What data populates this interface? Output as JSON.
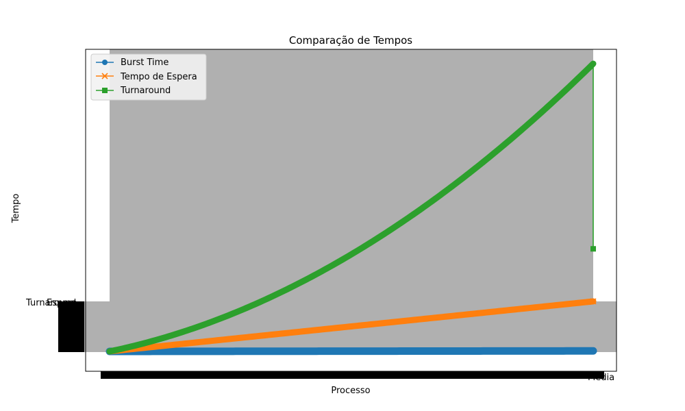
{
  "chart_data": {
    "type": "line",
    "title": "Comparação de Tempos",
    "xlabel": "Processo",
    "ylabel": "Tempo",
    "grid": false,
    "legend_position": "upper-left",
    "series": [
      {
        "name": "Burst Time",
        "color": "#1f77b4",
        "marker": "circle",
        "y_start": 0,
        "y_end": 2
      },
      {
        "name": "Tempo de Espera",
        "color": "#ff7f0e",
        "marker": "x",
        "y_start": 0,
        "y_end": 200
      },
      {
        "name": "Turnaround",
        "color": "#2ca02c",
        "marker": "square",
        "y_start": 0,
        "y_end": 1150,
        "y_last": 410
      }
    ],
    "overlap_labels": {
      "y_left": "Turnaround",
      "y_left_b": "Espera",
      "x_right": "Média"
    }
  }
}
